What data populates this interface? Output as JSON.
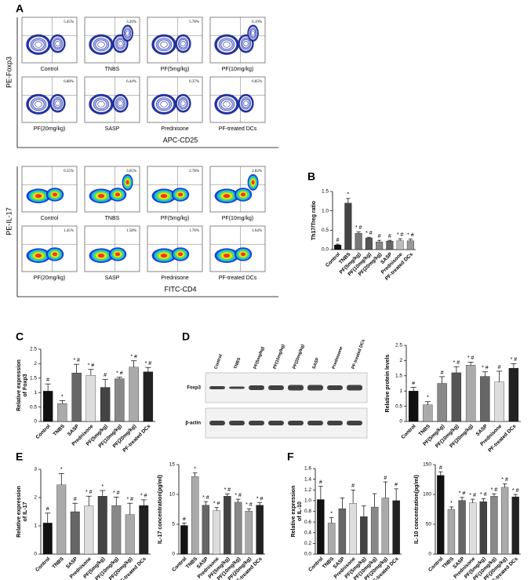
{
  "panel_letters": {
    "A": "A",
    "B": "B",
    "C": "C",
    "D": "D",
    "E": "E",
    "F": "F"
  },
  "flow_foxp3": {
    "y_label": "PE-Foxp3",
    "x_label": "APC-CD25",
    "plots": [
      {
        "name": "Control",
        "percent": "5.45%"
      },
      {
        "name": "TNBS",
        "percent": "3.26%"
      },
      {
        "name": "PF(5mg/kg)",
        "percent": "5.78%"
      },
      {
        "name": "PF(10mg/kg)",
        "percent": "6.19%"
      },
      {
        "name": "PF(20mg/kg)",
        "percent": "6.88%"
      },
      {
        "name": "SASP",
        "percent": "6.44%"
      },
      {
        "name": "Prednisone",
        "percent": "6.37%"
      },
      {
        "name": "PF-treated DCs",
        "percent": "6.85%"
      }
    ]
  },
  "flow_il17": {
    "y_label": "PE-IL-17",
    "x_label": "FITC-CD4",
    "plots": [
      {
        "name": "Control",
        "percent": "0.55%"
      },
      {
        "name": "TNBS",
        "percent": "3.65%"
      },
      {
        "name": "PF(5mg/kg)",
        "percent": "2.78%"
      },
      {
        "name": "PF(10mg/kg)",
        "percent": "2.82%"
      },
      {
        "name": "PF(20mg/kg)",
        "percent": "1.45%"
      },
      {
        "name": "SASP",
        "percent": "1.58%"
      },
      {
        "name": "Prednisone",
        "percent": "1.76%"
      },
      {
        "name": "PF-treated DCs",
        "percent": "1.64%"
      }
    ]
  },
  "western": {
    "lanes": [
      "Control",
      "TNBS",
      "PF(5mg/kg)",
      "PF(10mg/kg)",
      "PF(20mg/kg)",
      "SASP",
      "Prednisone",
      "PF-treated DCs"
    ],
    "rows": [
      "Foxp3",
      "β-actin"
    ]
  },
  "chart_data": [
    {
      "type": "bar",
      "ylabel": [
        "Th17/Treg ratio"
      ],
      "categories": [
        "Control",
        "TNBS",
        "PF(5mg/kg)",
        "PF(10mg/kg)",
        "PF(20mg/kg)",
        "SASP",
        "Prednisone",
        "PF-treated DCs"
      ],
      "values": [
        0.12,
        1.2,
        0.42,
        0.3,
        0.2,
        0.22,
        0.23,
        0.23
      ],
      "errors": [
        0.02,
        0.12,
        0.04,
        0.02,
        0.04,
        0.02,
        0.05,
        0.04
      ],
      "annotations": [
        "#",
        "*",
        "* #",
        "* #",
        "#",
        "#",
        "* #",
        "* #"
      ],
      "colors": [
        "#111111",
        "#444444",
        "#777777",
        "#555555",
        "#888888",
        "#666666",
        "#bbbbbb",
        "#999999"
      ],
      "ylim": [
        0,
        1.5
      ],
      "yticks": [
        {
          "value": 0,
          "label": "0.0"
        },
        {
          "value": 0.5,
          "label": "0.5"
        },
        {
          "value": 1,
          "label": "1.0"
        },
        {
          "value": 1.5,
          "label": "1.5"
        }
      ]
    },
    {
      "type": "bar",
      "ylabel": [
        "Relative expression",
        "of Foxp3"
      ],
      "categories": [
        "Control",
        "TNBS",
        "SASP",
        "Prednisone",
        "PF(5mg/kg)",
        "PF(10mg/kg)",
        "PF(20mg/kg)",
        "PF-treated DCs"
      ],
      "values": [
        1.05,
        0.62,
        1.68,
        1.6,
        1.18,
        1.48,
        1.88,
        1.72
      ],
      "errors": [
        0.25,
        0.1,
        0.3,
        0.2,
        0.28,
        0.05,
        0.22,
        0.15
      ],
      "annotations": [
        "#",
        "*",
        "* #",
        "* #",
        "#",
        "* #",
        "* #",
        "* #"
      ],
      "colors": [
        "#111111",
        "#aaaaaa",
        "#666666",
        "#dddddd",
        "#444444",
        "#888888",
        "#aaaaaa",
        "#222222"
      ],
      "ylim": [
        0,
        2.5
      ],
      "yticks": [
        0,
        0.5,
        1,
        1.5,
        2,
        2.5
      ]
    },
    {
      "type": "bar",
      "ylabel": [
        "Relative protein levels"
      ],
      "categories": [
        "Control",
        "TNBS",
        "PF(5mg/kg)",
        "PF(10mg/kg)",
        "PF(20mg/kg)",
        "SASP",
        "Prednisone",
        "PF-treated DCs"
      ],
      "values": [
        1.0,
        0.55,
        1.25,
        1.6,
        1.85,
        1.48,
        1.3,
        1.75
      ],
      "errors": [
        0.12,
        0.1,
        0.22,
        0.2,
        0.1,
        0.15,
        0.35,
        0.15
      ],
      "annotations": [
        "#",
        "*",
        "#",
        "* #",
        "* #",
        "* #",
        "#",
        "* #"
      ],
      "colors": [
        "#111111",
        "#aaaaaa",
        "#888888",
        "#555555",
        "#aaaaaa",
        "#666666",
        "#dddddd",
        "#222222"
      ],
      "ylim": [
        0,
        2.5
      ],
      "yticks": [
        0,
        0.5,
        1,
        1.5,
        2,
        2.5
      ]
    },
    {
      "type": "bar",
      "ylabel": [
        "Relative expression",
        "of IL-17"
      ],
      "categories": [
        "Control",
        "TNBS",
        "SASP",
        "Prednisone",
        "PF(5mg/kg)",
        "PF(10mg/kg)",
        "PF(20mg/kg)",
        "PF-treated DCs"
      ],
      "values": [
        1.1,
        2.45,
        1.5,
        1.7,
        2.05,
        1.72,
        1.4,
        1.72
      ],
      "errors": [
        0.35,
        0.4,
        0.3,
        0.35,
        0.2,
        0.3,
        0.4,
        0.2
      ],
      "annotations": [
        "#",
        "*",
        "#",
        "* #",
        "*",
        "* #",
        "* #",
        "* #"
      ],
      "colors": [
        "#111111",
        "#aaaaaa",
        "#666666",
        "#dddddd",
        "#444444",
        "#888888",
        "#aaaaaa",
        "#222222"
      ],
      "ylim": [
        0,
        3
      ],
      "yticks": [
        0,
        1,
        2,
        3
      ]
    },
    {
      "type": "bar",
      "ylabel": [
        "IL-17 concentration(pg/ml)"
      ],
      "categories": [
        "Control",
        "TNBS",
        "SASP",
        "Prednisone",
        "PF(5mg/kg)",
        "PF(10mg/kg)",
        "PF(20mg/kg)",
        "PF-treated DCs"
      ],
      "values": [
        4.8,
        13.0,
        8.2,
        7.3,
        9.7,
        8.7,
        7.2,
        8.2
      ],
      "errors": [
        0.4,
        0.6,
        0.6,
        0.5,
        0.4,
        0.5,
        0.4,
        0.4
      ],
      "annotations": [
        "#",
        "*",
        "* #",
        "* #",
        "* #",
        "* #",
        "* #",
        "* #"
      ],
      "colors": [
        "#111111",
        "#aaaaaa",
        "#666666",
        "#dddddd",
        "#444444",
        "#888888",
        "#aaaaaa",
        "#222222"
      ],
      "ylim": [
        0,
        15
      ],
      "yticks": [
        0,
        5,
        10,
        15
      ]
    },
    {
      "type": "bar",
      "ylabel": [
        "Relative expression",
        "of IL-10"
      ],
      "categories": [
        "Control",
        "TNBS",
        "SASP",
        "Prednisone",
        "PF(5mg/kg)",
        "PF(10mg/kg)",
        "PF(20mg/kg)",
        "PF-treated DCs"
      ],
      "values": [
        1.02,
        0.58,
        0.85,
        0.95,
        0.7,
        0.88,
        1.05,
        1.0
      ],
      "errors": [
        0.25,
        0.1,
        0.2,
        0.25,
        0.2,
        0.25,
        0.3,
        0.22
      ],
      "annotations": [
        "#",
        "*",
        null,
        "#",
        null,
        null,
        "#",
        "#"
      ],
      "colors": [
        "#111111",
        "#aaaaaa",
        "#666666",
        "#dddddd",
        "#444444",
        "#888888",
        "#aaaaaa",
        "#222222"
      ],
      "ylim": [
        0,
        1.6
      ],
      "yticks": [
        {
          "value": 0,
          "label": "0.0"
        },
        {
          "value": 0.2,
          "label": "0.2"
        },
        {
          "value": 0.4,
          "label": "0.4"
        },
        {
          "value": 0.6,
          "label": "0.6"
        },
        {
          "value": 0.8,
          "label": "0.8"
        },
        {
          "value": 1,
          "label": "1.0"
        },
        {
          "value": 1.2,
          "label": "1.2"
        },
        {
          "value": 1.4,
          "label": "1.4"
        },
        {
          "value": 1.6,
          "label": "1.6"
        }
      ]
    },
    {
      "type": "bar",
      "ylabel": [
        "IL-10 concentration(pg/ml)"
      ],
      "categories": [
        "Control",
        "TNBS",
        "SASP",
        "Prednisone",
        "PF(5mg/kg)",
        "PF(10mg/kg)",
        "PF(20mg/kg)",
        "PF-treated DCs"
      ],
      "values": [
        132,
        75,
        90,
        86,
        88,
        97,
        112,
        96
      ],
      "errors": [
        6,
        4,
        5,
        6,
        5,
        4,
        6,
        4
      ],
      "annotations": [
        "#",
        "*",
        "* #",
        "* #",
        "* #",
        "* #",
        "* #",
        "* #"
      ],
      "colors": [
        "#111111",
        "#aaaaaa",
        "#666666",
        "#dddddd",
        "#444444",
        "#888888",
        "#aaaaaa",
        "#222222"
      ],
      "ylim": [
        0,
        150
      ],
      "yticks": [
        0,
        50,
        100,
        150
      ]
    }
  ]
}
